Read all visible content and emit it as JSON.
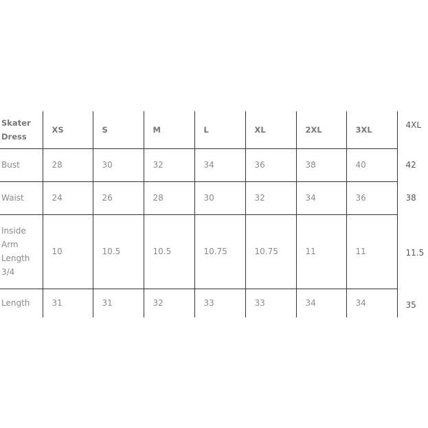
{
  "table": {
    "header": [
      "Skater Dress",
      "XS",
      "S",
      "M",
      "L",
      "XL",
      "2XL",
      "3XL",
      "4XL"
    ],
    "rows": [
      {
        "label": "Bust",
        "values": [
          "28",
          "30",
          "32",
          "34",
          "36",
          "38",
          "40",
          "42"
        ]
      },
      {
        "label": "Waist",
        "values": [
          "24",
          "26",
          "28",
          "30",
          "32",
          "34",
          "36",
          "38"
        ]
      },
      {
        "label": "Inside Arm Length 3/4",
        "values": [
          "10",
          "10.5",
          "10.5",
          "10.75",
          "10.75",
          "11",
          "11",
          "11.5"
        ]
      },
      {
        "label": "Length",
        "values": [
          "31",
          "31",
          "32",
          "33",
          "33",
          "34",
          "34",
          "35"
        ]
      }
    ]
  }
}
